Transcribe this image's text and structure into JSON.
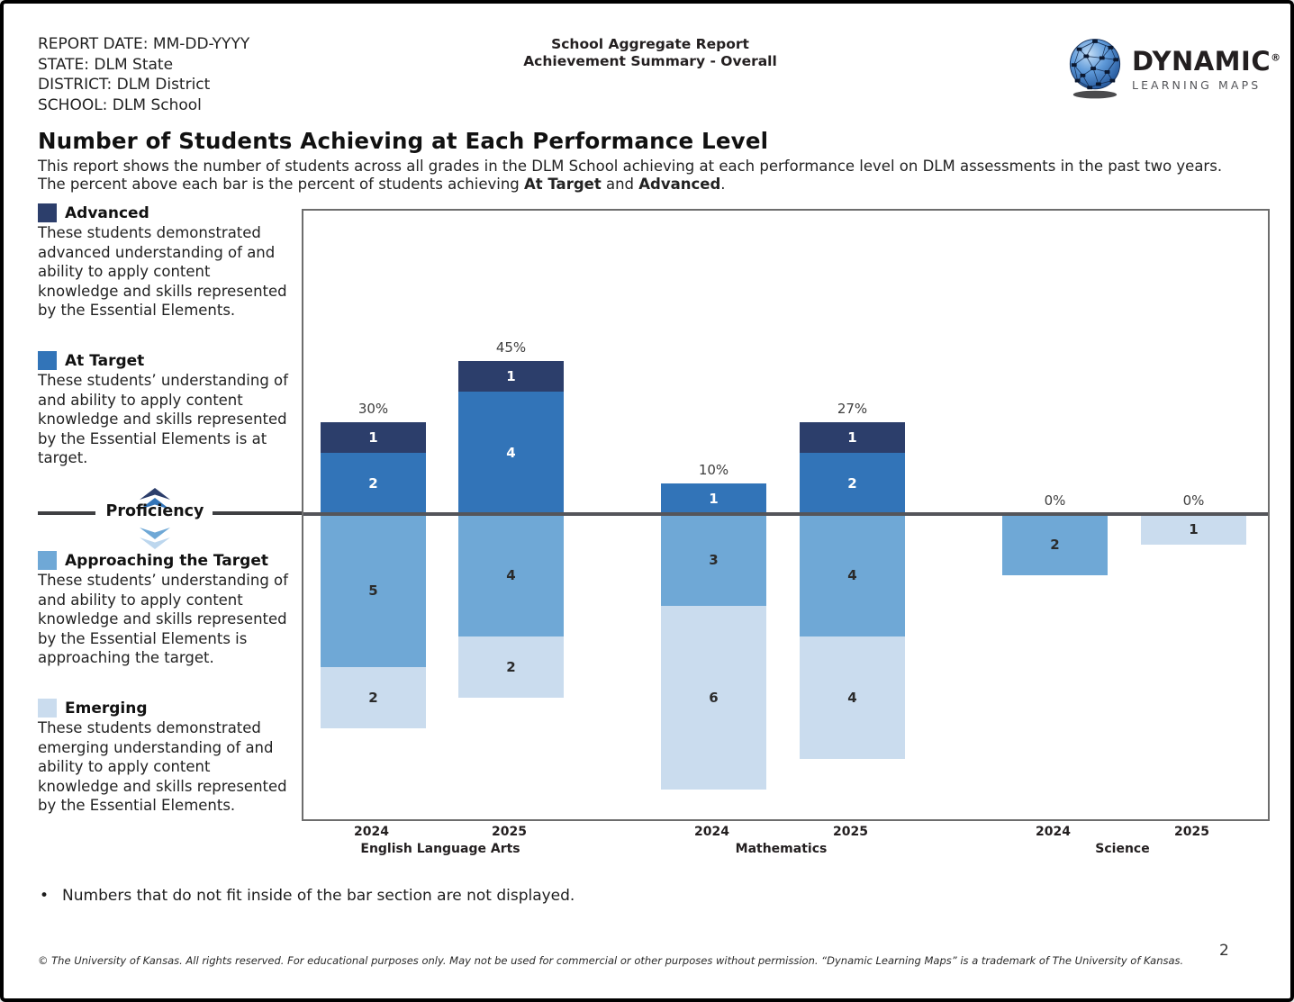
{
  "header": {
    "report_lines": [
      "REPORT DATE: MM-DD-YYYY",
      "STATE: DLM State",
      "DISTRICT: DLM District",
      "SCHOOL: DLM School"
    ],
    "center_title_line1": "School Aggregate Report",
    "center_title_line2": "Achievement Summary - Overall",
    "logo": {
      "icon": "dlm-globe-network-icon",
      "brand": "DYNAMIC",
      "registered_mark": "®",
      "tagline": "LEARNING MAPS"
    }
  },
  "report": {
    "title": "Number of Students Achieving at Each Performance Level",
    "description_line1": "This report shows the number of students across all grades in the DLM School achieving at each performance level on DLM assessments in the past two years.",
    "description_line2_prefix": "The percent above each bar is the percent of students achieving ",
    "description_bold1": "At Target",
    "description_and": " and ",
    "description_bold2": "Advanced",
    "description_period": "."
  },
  "legend": {
    "advanced": {
      "label": "Advanced",
      "description": "These students demonstrated advanced understanding of and ability to apply content knowledge and skills represented by the Essential Elements."
    },
    "at_target": {
      "label": "At Target",
      "description": "These students’ understanding of and ability to apply content knowledge and skills represented by the Essential Elements is at target."
    },
    "proficiency_label": "Proficiency",
    "approaching": {
      "label": "Approaching the Target",
      "description": "These students’ understanding of and ability to apply content knowledge and skills represented by the Essential Elements is approaching the target."
    },
    "emerging": {
      "label": "Emerging",
      "description": "These students demonstrated emerging understanding of and ability to apply content knowledge and skills represented by the Essential Elements."
    }
  },
  "chart_data": {
    "type": "bar",
    "stacked": true,
    "orientation": "diverging around proficiency line",
    "baseline_label": "Proficiency",
    "value_unit": "students",
    "legend_position": "left",
    "colors": {
      "advanced": "#2c3e6b",
      "at_target": "#3274b8",
      "approaching": "#6fa8d6",
      "emerging": "#cadcee"
    },
    "groups": [
      {
        "subject": "English Language Arts",
        "bars": [
          {
            "year": "2024",
            "percent_label": "30%",
            "advanced": 1,
            "at_target": 2,
            "approaching": 5,
            "emerging": 2
          },
          {
            "year": "2025",
            "percent_label": "45%",
            "advanced": 1,
            "at_target": 4,
            "approaching": 4,
            "emerging": 2
          }
        ]
      },
      {
        "subject": "Mathematics",
        "bars": [
          {
            "year": "2024",
            "percent_label": "10%",
            "advanced": 0,
            "at_target": 1,
            "approaching": 3,
            "emerging": 6
          },
          {
            "year": "2025",
            "percent_label": "27%",
            "advanced": 1,
            "at_target": 2,
            "approaching": 4,
            "emerging": 4
          }
        ]
      },
      {
        "subject": "Science",
        "bars": [
          {
            "year": "2024",
            "percent_label": "0%",
            "advanced": 0,
            "at_target": 0,
            "approaching": 2,
            "emerging": 0
          },
          {
            "year": "2025",
            "percent_label": "0%",
            "advanced": 0,
            "at_target": 0,
            "approaching": 0,
            "emerging": 1
          }
        ]
      }
    ]
  },
  "notes": {
    "bullet": "Numbers that do not fit inside of the bar section are not displayed."
  },
  "footer": {
    "copyright": "© The University of Kansas. All rights reserved. For educational purposes only. May not be used for commercial or other purposes without permission. “Dynamic Learning Maps” is a trademark of The University of Kansas.",
    "page_number": "2"
  }
}
